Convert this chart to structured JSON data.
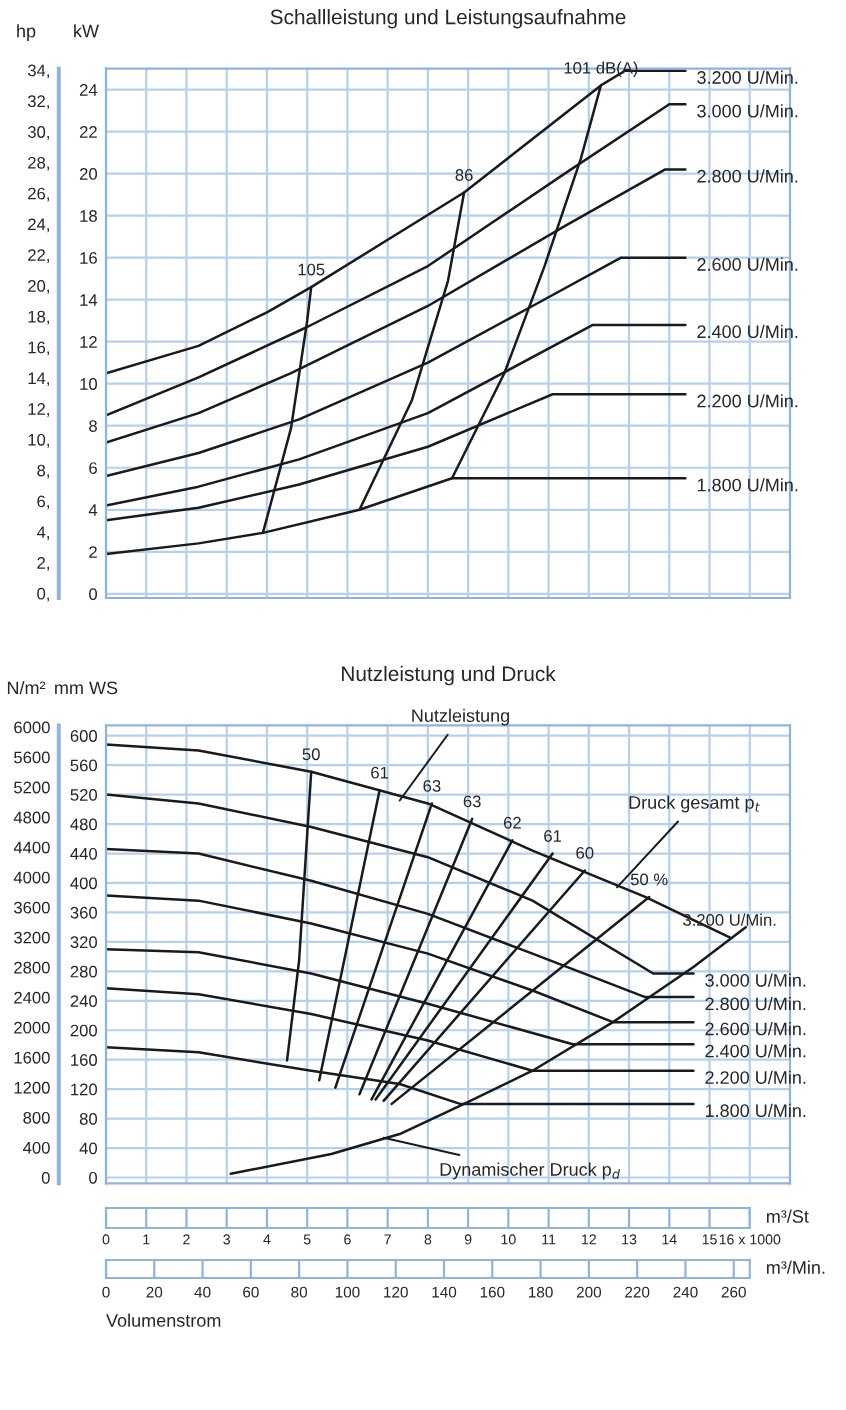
{
  "chart_data": [
    {
      "type": "line",
      "title": "Schallleistung und Leistungsaufnahme",
      "ylabel": "kW",
      "y2label": "hp",
      "xlim": [
        0,
        17
      ],
      "xticks": [
        0,
        1,
        2,
        3,
        4,
        5,
        6,
        7,
        8,
        9,
        10,
        11,
        12,
        13,
        14,
        15,
        16
      ],
      "ylim": [
        -0.2,
        25
      ],
      "yticks": [
        0,
        2,
        4,
        6,
        8,
        10,
        12,
        14,
        16,
        18,
        20,
        22,
        24
      ],
      "y2lim": [
        -0.3,
        34.1
      ],
      "y2ticks": [
        {
          "value": 0,
          "label": "0,"
        },
        {
          "value": 2,
          "label": "2,"
        },
        {
          "value": 4,
          "label": "4,"
        },
        {
          "value": 6,
          "label": "6,"
        },
        {
          "value": 8,
          "label": "8,"
        },
        {
          "value": 10,
          "label": "10,"
        },
        {
          "value": 12,
          "label": "12,"
        },
        {
          "value": 14,
          "label": "14,"
        },
        {
          "value": 16,
          "label": "16,"
        },
        {
          "value": 18,
          "label": "18,"
        },
        {
          "value": 20,
          "label": "20,"
        },
        {
          "value": 22,
          "label": "22,"
        },
        {
          "value": 24,
          "label": "24,"
        },
        {
          "value": 26,
          "label": "26,"
        },
        {
          "value": 28,
          "label": "28,"
        },
        {
          "value": 30,
          "label": "30,"
        },
        {
          "value": 32,
          "label": "32,"
        },
        {
          "value": 34,
          "label": "34,"
        }
      ],
      "grid": true,
      "tick_labels": "y",
      "series": [
        {
          "name": "3.200 U/Min.",
          "color": "#1a1a1a",
          "x": [
            0,
            2.3,
            4.0,
            5.1,
            8.9,
            12.3,
            12.9,
            14.4
          ],
          "values": [
            10.5,
            11.8,
            13.4,
            14.6,
            19.1,
            24.2,
            24.9,
            24.9
          ]
        },
        {
          "name": "3.000 U/Min.",
          "color": "#1a1a1a",
          "x": [
            0,
            2.3,
            5.0,
            8.0,
            11.4,
            14.0,
            14.4
          ],
          "values": [
            8.5,
            10.3,
            12.7,
            15.6,
            20.0,
            23.3,
            23.3
          ]
        },
        {
          "name": "2.800 U/Min.",
          "color": "#1a1a1a",
          "x": [
            0,
            2.3,
            4.6,
            8.0,
            11.4,
            13.9,
            14.4
          ],
          "values": [
            7.2,
            8.6,
            10.5,
            13.7,
            17.5,
            20.2,
            20.2
          ]
        },
        {
          "name": "2.600 U/Min.",
          "color": "#1a1a1a",
          "x": [
            0,
            2.3,
            4.8,
            8.0,
            10.6,
            12.8,
            14.4
          ],
          "values": [
            5.6,
            6.7,
            8.3,
            11.0,
            13.7,
            16.0,
            16.0
          ]
        },
        {
          "name": "2.400 U/Min.",
          "color": "#1a1a1a",
          "x": [
            0,
            2.3,
            4.8,
            8.0,
            12.1,
            14.4
          ],
          "values": [
            4.2,
            5.1,
            6.4,
            8.6,
            12.8,
            12.8
          ]
        },
        {
          "name": "2.200 U/Min.",
          "color": "#1a1a1a",
          "x": [
            0,
            2.3,
            4.8,
            8.0,
            11.1,
            14.4
          ],
          "values": [
            3.5,
            4.1,
            5.2,
            7.0,
            9.5,
            9.5
          ]
        },
        {
          "name": "1.800 U/Min.",
          "color": "#1a1a1a",
          "x": [
            0,
            2.3,
            3.9,
            6.3,
            8.6,
            14.4
          ],
          "values": [
            1.9,
            2.4,
            2.9,
            4.0,
            5.5,
            5.5
          ]
        },
        {
          "name": "105",
          "color": "#1a1a1a",
          "x": [
            3.9,
            4.6,
            5.0,
            5.1
          ],
          "values": [
            2.9,
            7.9,
            13.0,
            14.6
          ]
        },
        {
          "name": "86",
          "color": "#1a1a1a",
          "x": [
            6.3,
            7.6,
            8.5,
            8.9
          ],
          "values": [
            4.0,
            9.2,
            14.9,
            19.1
          ]
        },
        {
          "name": "101 dB(A)",
          "color": "#1a1a1a",
          "x": [
            8.6,
            9.9,
            10.9,
            11.8,
            12.3
          ],
          "values": [
            5.5,
            10.5,
            15.6,
            20.7,
            24.2
          ]
        }
      ]
    },
    {
      "type": "line",
      "title": "Nutzleistung und Druck",
      "ylabel": "mm WS",
      "y2label": "N/m²",
      "xlim": [
        0,
        17
      ],
      "xticks": [
        0,
        1,
        2,
        3,
        4,
        5,
        6,
        7,
        8,
        9,
        10,
        11,
        12,
        13,
        14,
        15,
        {
          "value": 16,
          "label": "16 x 1000"
        }
      ],
      "xlabel": "m³/St",
      "x2lim": [
        0,
        283.3
      ],
      "x2ticks": [
        0,
        20,
        40,
        60,
        80,
        100,
        120,
        140,
        160,
        180,
        200,
        220,
        240,
        260
      ],
      "x2label": "m³/Min.",
      "ylim": [
        -8,
        614
      ],
      "yticks": [
        0,
        40,
        80,
        120,
        160,
        200,
        240,
        280,
        320,
        360,
        400,
        440,
        480,
        520,
        560,
        600
      ],
      "y2lim": [
        -78,
        6023
      ],
      "y2ticks": [
        0,
        400,
        800,
        1200,
        1600,
        2000,
        2400,
        2800,
        3200,
        3600,
        4000,
        4400,
        4800,
        5200,
        5600,
        6000
      ],
      "grid": true,
      "series": [
        {
          "name": "3.200 U/Min.",
          "color": "#1a1a1a",
          "x": [
            0,
            2.3,
            5.1,
            8.0,
            10.6,
            13.4,
            15.5
          ],
          "values": [
            588,
            580,
            551,
            508,
            444,
            381,
            326
          ]
        },
        {
          "name": "3.000 U/Min.",
          "color": "#1a1a1a",
          "x": [
            0,
            2.3,
            5.1,
            8.0,
            10.6,
            13.6,
            14.6
          ],
          "values": [
            520,
            508,
            476,
            435,
            376,
            277,
            277
          ]
        },
        {
          "name": "2.800 U/Min.",
          "color": "#1a1a1a",
          "x": [
            0,
            2.3,
            5.1,
            8.0,
            10.6,
            13.4,
            14.6
          ],
          "values": [
            446,
            440,
            403,
            358,
            304,
            245,
            245
          ]
        },
        {
          "name": "2.600 U/Min.",
          "color": "#1a1a1a",
          "x": [
            0,
            2.3,
            5.1,
            8.0,
            10.6,
            12.6,
            14.6
          ],
          "values": [
            383,
            376,
            345,
            304,
            254,
            211,
            211
          ]
        },
        {
          "name": "2.400 U/Min.",
          "color": "#1a1a1a",
          "x": [
            0,
            2.3,
            5.1,
            8.0,
            11.6,
            14.6
          ],
          "values": [
            310,
            306,
            277,
            236,
            181,
            181
          ]
        },
        {
          "name": "2.200 U/Min.",
          "color": "#1a1a1a",
          "x": [
            0,
            2.3,
            5.1,
            8.0,
            10.6,
            14.6
          ],
          "values": [
            257,
            249,
            222,
            186,
            145,
            145
          ]
        },
        {
          "name": "1.800 U/Min.",
          "color": "#1a1a1a",
          "x": [
            0,
            2.3,
            5.1,
            7.3,
            8.8,
            14.6
          ],
          "values": [
            177,
            170,
            145,
            127,
            100,
            100
          ]
        },
        {
          "color": "#1a1a1a",
          "x": [
            3.1,
            5.6,
            7.3,
            8.9,
            10.6,
            12.6,
            14.6,
            15.9
          ],
          "values": [
            5,
            32,
            59,
            100,
            145,
            211,
            286,
            340
          ]
        },
        {
          "name": "50",
          "color": "#1a1a1a",
          "x": [
            4.5,
            4.8,
            5.1
          ],
          "values": [
            159,
            295,
            551
          ]
        },
        {
          "name": "61",
          "color": "#1a1a1a",
          "x": [
            5.3,
            6.8
          ],
          "values": [
            132,
            526
          ]
        },
        {
          "name": "63",
          "color": "#1a1a1a",
          "x": [
            5.7,
            8.1
          ],
          "values": [
            122,
            508
          ]
        },
        {
          "name": "63",
          "color": "#1a1a1a",
          "x": [
            6.3,
            9.1
          ],
          "values": [
            113,
            487
          ]
        },
        {
          "name": "62",
          "color": "#1a1a1a",
          "x": [
            6.6,
            10.1
          ],
          "values": [
            106,
            458
          ]
        },
        {
          "name": "61",
          "color": "#1a1a1a",
          "x": [
            6.7,
            11.1
          ],
          "values": [
            106,
            440
          ]
        },
        {
          "name": "60",
          "color": "#1a1a1a",
          "x": [
            6.9,
            11.9
          ],
          "values": [
            104,
            417
          ]
        },
        {
          "name": "50 %",
          "color": "#1a1a1a",
          "x": [
            7.1,
            13.5
          ],
          "values": [
            100,
            381
          ]
        }
      ],
      "annotations": [
        {
          "text": "Nutzleistung",
          "x": 7.3,
          "y": 512
        },
        {
          "text": "Druck gesamt p$_{t}$",
          "x": 12.7,
          "y": 394
        },
        {
          "text": "Dynamischer Druck p$_{d}$",
          "x": 6.9,
          "y": 54
        },
        "Volumenstrom"
      ]
    }
  ]
}
